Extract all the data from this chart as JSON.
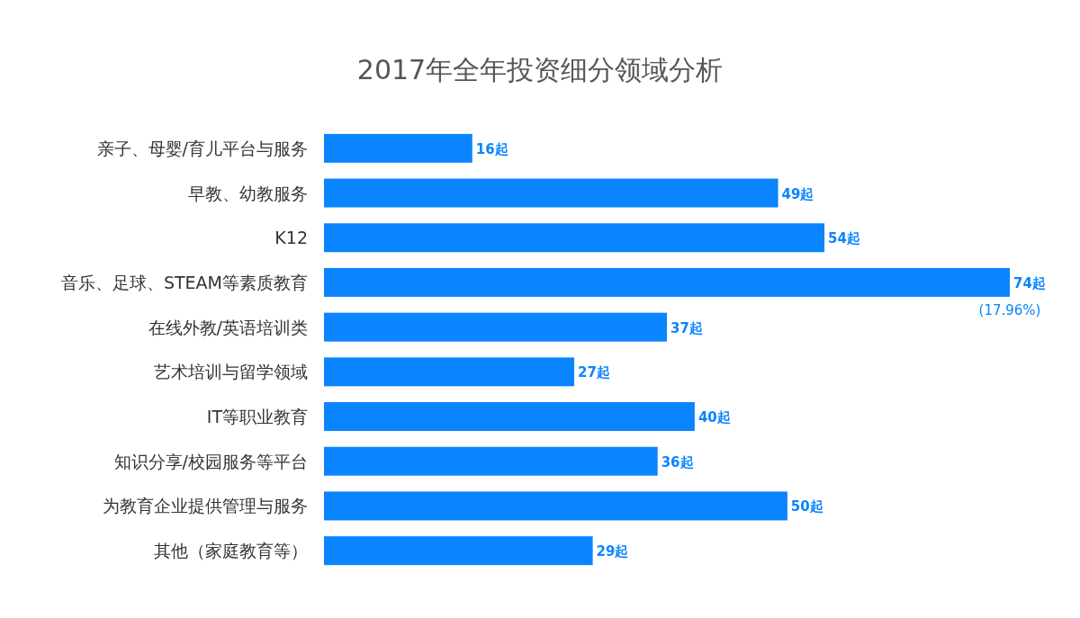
{
  "chart_data": {
    "type": "bar",
    "orientation": "horizontal",
    "title": "2017年全年投资细分领域分析",
    "categories": [
      "亲子、母婴/育儿平台与服务",
      "早教、幼教服务",
      "K12",
      "音乐、足球、STEAM等素质教育",
      "在线外教/英语培训类",
      "艺术培训与留学领域",
      "IT等职业教育",
      "知识分享/校园服务等平台",
      "为教育企业提供管理与服务",
      "其他（家庭教育等）"
    ],
    "values": [
      16,
      49,
      54,
      74,
      37,
      27,
      40,
      36,
      50,
      29
    ],
    "value_labels": [
      "16起",
      "49起",
      "54起",
      "74起",
      "37起",
      "27起",
      "40起",
      "36起",
      "50起",
      "29起"
    ],
    "color": "#0a84ff",
    "annotations": [
      {
        "text": "(17.96%)",
        "x": 74,
        "y": "音乐、足球、STEAM等素质教育"
      }
    ]
  }
}
